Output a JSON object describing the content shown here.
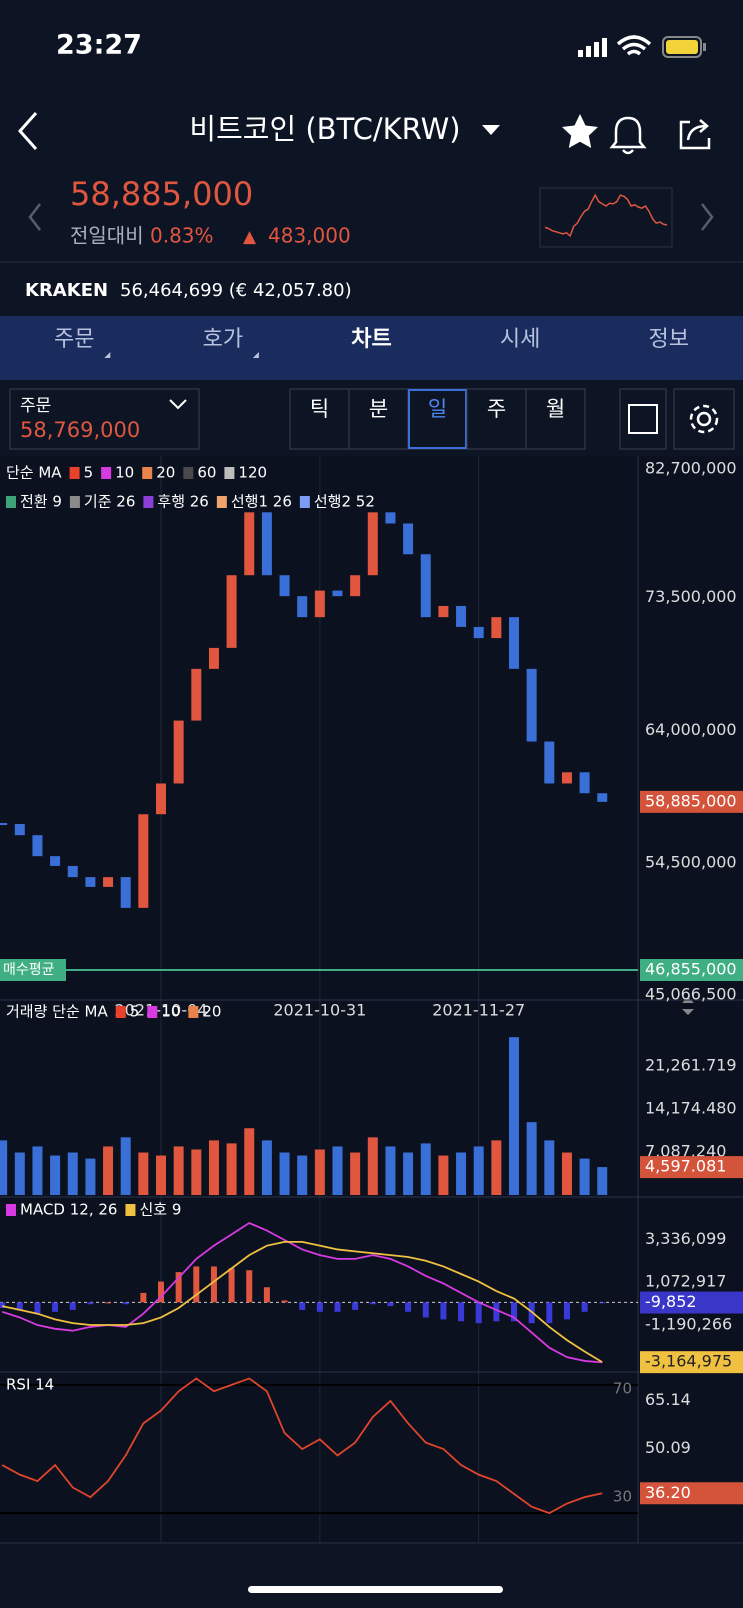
{
  "status_bar": {
    "time": "23:27"
  },
  "header": {
    "title": "비트코인 (BTC/KRW)"
  },
  "quote": {
    "price": "58,885,000",
    "change_label": "전일대비",
    "change_pct": "0.83%",
    "change_arrow": "▲",
    "change_abs": "483,000"
  },
  "reference": {
    "exchange": "KRAKEN",
    "value": "56,464,699 (€ 42,057.80)"
  },
  "tabs": [
    "주문",
    "호가",
    "차트",
    "시세",
    "정보"
  ],
  "active_tab": 2,
  "order_box": {
    "label": "주문",
    "value": "58,769,000"
  },
  "intervals": [
    "틱",
    "분",
    "일",
    "주",
    "월"
  ],
  "active_interval": 2,
  "chart": {
    "x": [
      null,
      null,
      null,
      null,
      null,
      null,
      null,
      null,
      null,
      "2021-10-04",
      null,
      null,
      null,
      null,
      null,
      null,
      null,
      null,
      "2021-10-31",
      null,
      null,
      null,
      null,
      null,
      null,
      null,
      null,
      "2021-11-27",
      null,
      null,
      null,
      null,
      null,
      null,
      null
    ],
    "price_panel": {
      "ma_label": "단순 MA",
      "ma": [
        {
          "name": "5",
          "color": "#e8412c"
        },
        {
          "name": "10",
          "color": "#d63ae0"
        },
        {
          "name": "20",
          "color": "#e8844a"
        },
        {
          "name": "60",
          "color": "#4a4a4a"
        },
        {
          "name": "120",
          "color": "#bdbdbd"
        }
      ],
      "ichimoku": [
        {
          "name": "전환 9",
          "color": "#3fa37a"
        },
        {
          "name": "기준 26",
          "color": "#8a8a8a"
        },
        {
          "name": "후행 26",
          "color": "#8a3fd6"
        },
        {
          "name": "선행1 26",
          "color": "#f0a36b"
        },
        {
          "name": "선행2 52",
          "color": "#7f9cf5"
        }
      ],
      "ylim": [
        45066500,
        83200000
      ],
      "yticks": [
        {
          "value": 82700000,
          "label": "82,700,000"
        },
        {
          "value": 73500000,
          "label": "73,500,000"
        },
        {
          "value": 64000000,
          "label": "64,000,000"
        },
        {
          "value": 54500000,
          "label": "54,500,000"
        },
        {
          "value": 45066500,
          "label": "45,066,500"
        }
      ],
      "close": [
        57300000,
        56500000,
        55000000,
        54300000,
        53500000,
        52800000,
        53500000,
        51300000,
        58000000,
        60200000,
        64700000,
        68400000,
        69900000,
        75100000,
        79600000,
        75100000,
        73600000,
        72100000,
        74000000,
        73600000,
        75100000,
        79600000,
        78800000,
        76600000,
        72100000,
        72900000,
        71400000,
        70600000,
        72100000,
        68400000,
        63200000,
        60200000,
        61000000,
        59500000,
        58885000
      ],
      "up_color": "#e0563f",
      "down_color": "#3a6fd8",
      "last_price": {
        "value": 58885000,
        "label": "58,885,000",
        "color": "#d4533b"
      },
      "avg_line": {
        "name": "매수평균",
        "value": 46855000,
        "label": "46,855,000",
        "color": "#3fae82"
      }
    },
    "volume_panel": {
      "label": "거래량 단순 MA",
      "ma": [
        {
          "name": "5",
          "color": "#e8412c"
        },
        {
          "name": "10",
          "color": "#d63ae0"
        },
        {
          "name": "20",
          "color": "#e8844a"
        }
      ],
      "ylim": [
        0,
        28500
      ],
      "yticks": [
        {
          "value": 21261.719,
          "label": "21,261.719"
        },
        {
          "value": 14174.48,
          "label": "14,174.480"
        },
        {
          "value": 7087.24,
          "label": "7,087.240"
        }
      ],
      "values": [
        9000,
        7000,
        8000,
        6500,
        7000,
        6000,
        8000,
        9500,
        7000,
        6500,
        8000,
        7500,
        9000,
        8500,
        11000,
        9000,
        7000,
        6500,
        7500,
        8000,
        7000,
        9500,
        8000,
        7000,
        8500,
        6500,
        7000,
        8000,
        9000,
        26000,
        12000,
        9000,
        7000,
        6000,
        4597.081
      ],
      "last": {
        "value": 4597.081,
        "label": "4,597.081",
        "color": "#d4533b"
      }
    },
    "macd_panel": {
      "series": [
        {
          "name": "MACD 12, 26",
          "color": "#d63ae0"
        },
        {
          "name": "신호 9",
          "color": "#f0c040"
        }
      ],
      "ylim": [
        -3580000,
        5470000
      ],
      "yticks": [
        {
          "value": 3336099,
          "label": "3,336,099"
        },
        {
          "value": 1072917,
          "label": "1,072,917"
        },
        {
          "value": -1190266,
          "label": "-1,190,266"
        }
      ],
      "macd": [
        -500000,
        -800000,
        -1200000,
        -1400000,
        -1500000,
        -1300000,
        -1200000,
        -1300000,
        -600000,
        300000,
        1300000,
        2300000,
        3000000,
        3600000,
        4200000,
        3800000,
        3300000,
        2800000,
        2500000,
        2300000,
        2300000,
        2500000,
        2300000,
        1900000,
        1400000,
        1000000,
        500000,
        0,
        -400000,
        -800000,
        -1600000,
        -2400000,
        -2900000,
        -3100000,
        -3174827
      ],
      "signal": [
        -200000,
        -400000,
        -600000,
        -900000,
        -1100000,
        -1200000,
        -1200000,
        -1200000,
        -1100000,
        -800000,
        -300000,
        400000,
        1100000,
        1800000,
        2500000,
        3000000,
        3200000,
        3200000,
        3000000,
        2800000,
        2700000,
        2600000,
        2500000,
        2400000,
        2200000,
        1900000,
        1500000,
        1100000,
        600000,
        200000,
        -500000,
        -1300000,
        -2000000,
        -2600000,
        -3164975
      ],
      "histogram": [
        -300000,
        -400000,
        -600000,
        -500000,
        -400000,
        -100000,
        0,
        -100000,
        500000,
        1100000,
        1600000,
        1900000,
        1900000,
        1800000,
        1700000,
        800000,
        100000,
        -400000,
        -500000,
        -500000,
        -400000,
        -100000,
        -200000,
        -500000,
        -800000,
        -900000,
        -1000000,
        -1100000,
        -1000000,
        -1000000,
        -1100000,
        -1100000,
        -900000,
        -500000,
        -9852
      ],
      "hist_up_color": "#e0563f",
      "hist_down_color": "#3a3ad8",
      "hist_last": {
        "value": -9852,
        "label": "-9,852",
        "color": "#3a36c8"
      },
      "signal_last": {
        "value": -3164975,
        "label": "-3,164,975",
        "color": "#f0c040"
      }
    },
    "rsi_panel": {
      "label": "RSI 14",
      "color": "#e0452c",
      "ylim": [
        21,
        73.7
      ],
      "levels": [
        70,
        30
      ],
      "yticks": [
        65.14,
        50.09
      ],
      "values": [
        45,
        42,
        40,
        45,
        38,
        35,
        40,
        48,
        58,
        62,
        68,
        72,
        68,
        70,
        72,
        68,
        55,
        50,
        53,
        48,
        52,
        60,
        65,
        58,
        52,
        50,
        45,
        42,
        40,
        36,
        32,
        30,
        33,
        35,
        36.2
      ],
      "last": {
        "value": 36.2,
        "label": "36.20",
        "color": "#d4533b"
      }
    }
  }
}
